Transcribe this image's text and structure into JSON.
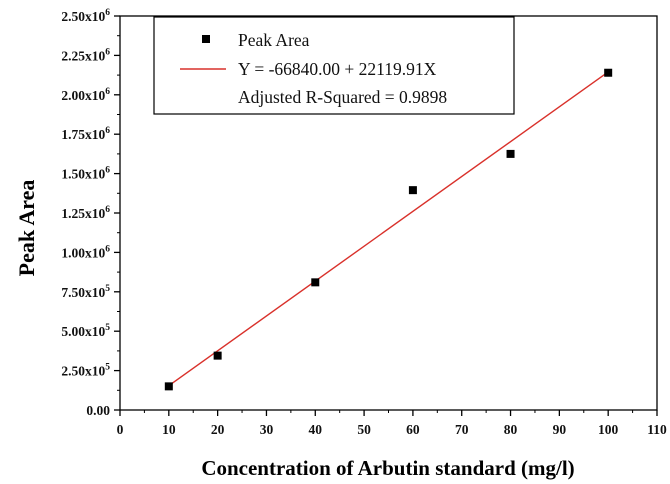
{
  "chart_data": {
    "type": "scatter",
    "xlabel": "Concentration of Arbutin standard (mg/l)",
    "ylabel": "Peak Area",
    "xlim": [
      0,
      110
    ],
    "ylim": [
      0,
      2500000
    ],
    "x_ticks": [
      "0",
      "10",
      "20",
      "30",
      "40",
      "50",
      "60",
      "70",
      "80",
      "90",
      "100",
      "110"
    ],
    "y_ticks": [
      {
        "mantissa": "0.00",
        "exp": ""
      },
      {
        "mantissa": "2.50x10",
        "exp": "5"
      },
      {
        "mantissa": "5.00x10",
        "exp": "5"
      },
      {
        "mantissa": "7.50x10",
        "exp": "5"
      },
      {
        "mantissa": "1.00x10",
        "exp": "6"
      },
      {
        "mantissa": "1.25x10",
        "exp": "6"
      },
      {
        "mantissa": "1.50x10",
        "exp": "6"
      },
      {
        "mantissa": "1.75x10",
        "exp": "6"
      },
      {
        "mantissa": "2.00x10",
        "exp": "6"
      },
      {
        "mantissa": "2.25x10",
        "exp": "6"
      },
      {
        "mantissa": "2.50x10",
        "exp": "6"
      }
    ],
    "series": [
      {
        "name": "Peak Area",
        "kind": "scatter",
        "x": [
          10,
          20,
          40,
          60,
          80,
          100
        ],
        "y": [
          150000,
          345000,
          810000,
          1395000,
          1625000,
          2140000
        ],
        "color": "#000000"
      }
    ],
    "fit": {
      "label": "Y = -66840.00 + 22119.91X",
      "intercept": -66840.0,
      "slope": 22119.91,
      "x_range": [
        10,
        100
      ],
      "color": "#d9312b"
    },
    "legend": {
      "position": "top-left",
      "entries": [
        "Peak Area",
        "Y = -66840.00 + 22119.91X",
        "Adjusted R-Squared = 0.9898"
      ]
    },
    "grid": false
  }
}
